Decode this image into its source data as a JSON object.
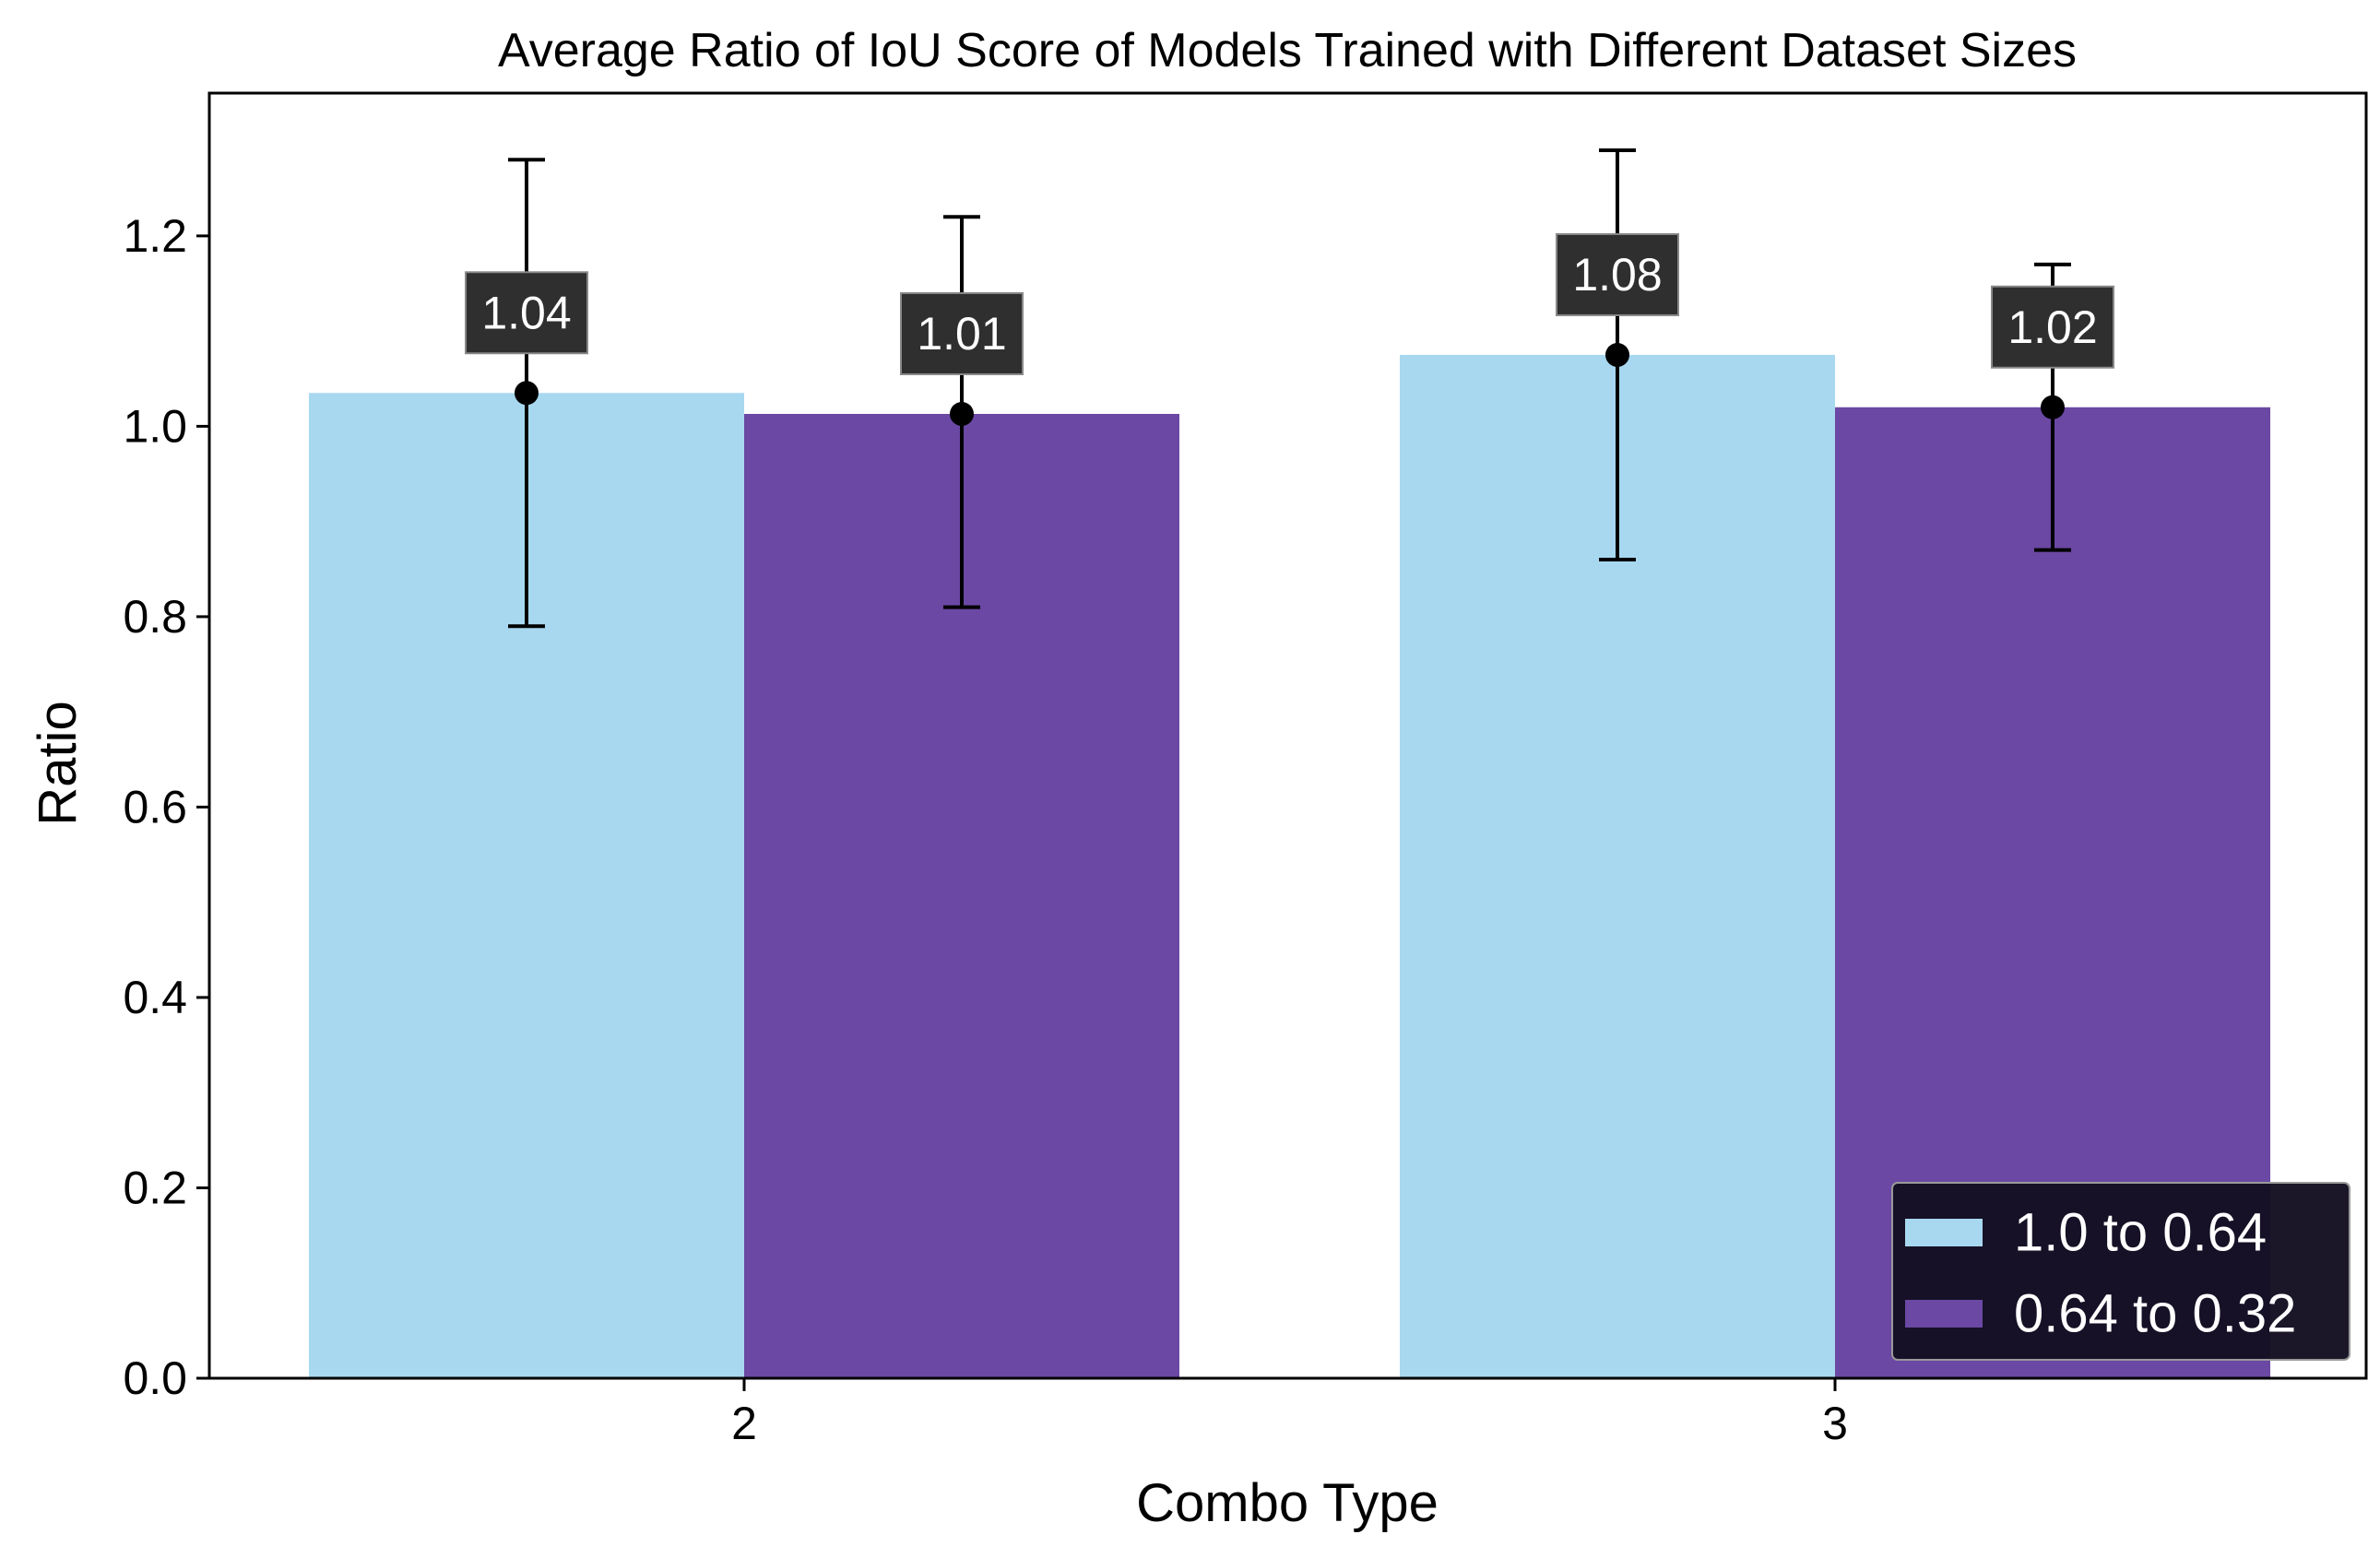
{
  "chart_data": {
    "type": "bar",
    "title": "Average Ratio of IoU Score of Models Trained with Different Dataset Sizes",
    "xlabel": "Combo Type",
    "ylabel": "Ratio",
    "categories": [
      "2",
      "3"
    ],
    "ylim": [
      0,
      1.35
    ],
    "yticks": [
      "0.0",
      "0.2",
      "0.4",
      "0.6",
      "0.8",
      "1.0",
      "1.2"
    ],
    "grid": false,
    "legend_position": "bottom-right",
    "series": [
      {
        "name": "1.0 to 0.64",
        "color": "#a7d8f0",
        "values": [
          1.035,
          1.075
        ],
        "error_low": [
          0.79,
          0.86
        ],
        "error_high": [
          1.28,
          1.29
        ],
        "labels": [
          "1.04",
          "1.08"
        ]
      },
      {
        "name": "0.64 to 0.32",
        "color": "#6a48a3",
        "values": [
          1.013,
          1.02
        ],
        "error_low": [
          0.81,
          0.87
        ],
        "error_high": [
          1.22,
          1.17
        ],
        "labels": [
          "1.01",
          "1.02"
        ]
      }
    ]
  }
}
